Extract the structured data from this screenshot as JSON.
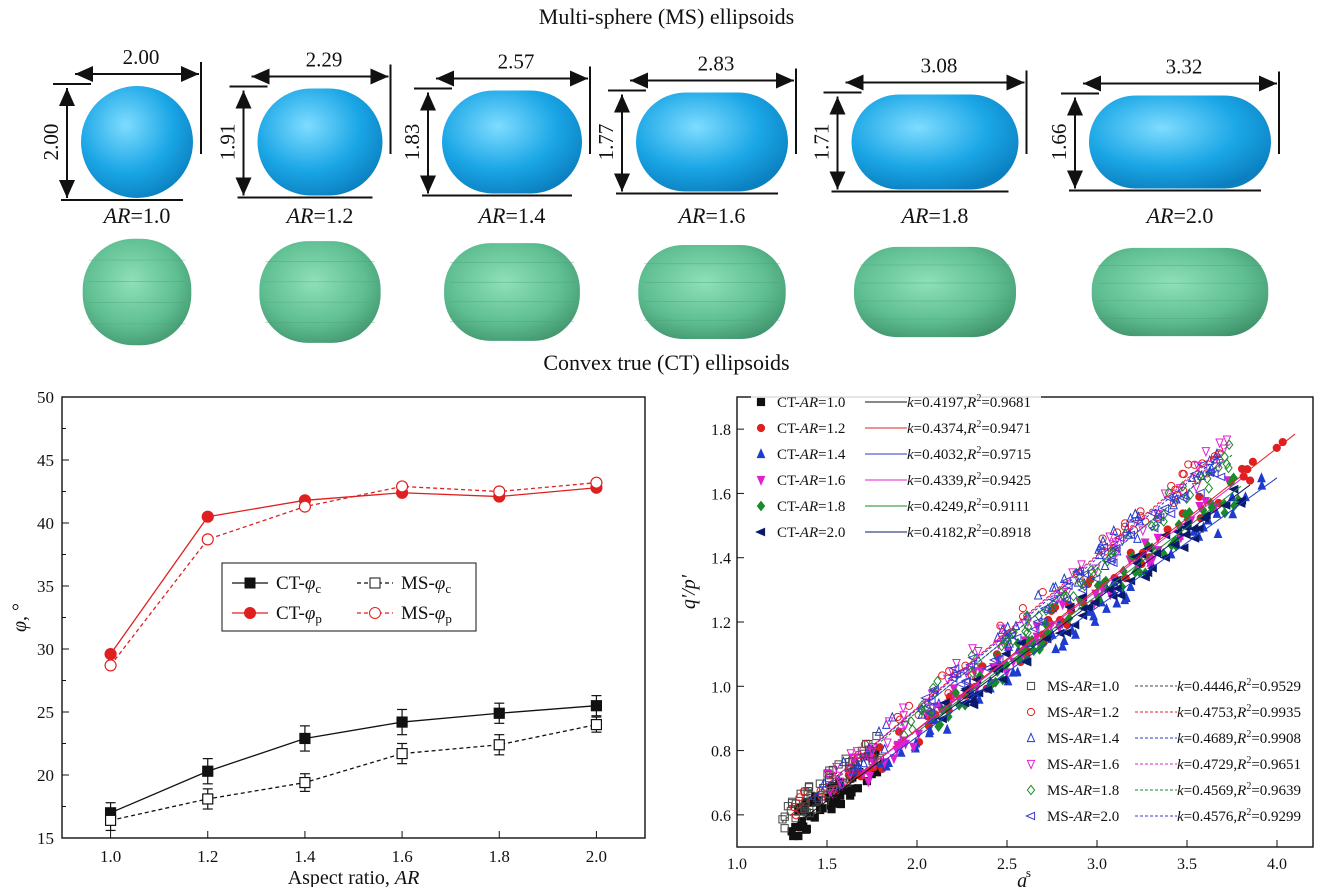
{
  "top_title": "Multi-sphere (MS) ellipsoids",
  "bottom_title": "Convex true (CT) ellipsoids",
  "colors": {
    "ms_shape": "#1aa6e6",
    "ct_shape": "#5fbf92",
    "ct_red": "#e02020",
    "black": "#111111"
  },
  "particles": [
    {
      "ar_prefix": "AR",
      "ar_value": "=1.0",
      "width_label": "2.00",
      "height_label": "2.00"
    },
    {
      "ar_prefix": "AR",
      "ar_value": "=1.2",
      "width_label": "2.29",
      "height_label": "1.91"
    },
    {
      "ar_prefix": "AR",
      "ar_value": "=1.4",
      "width_label": "2.57",
      "height_label": "1.83"
    },
    {
      "ar_prefix": "AR",
      "ar_value": "=1.6",
      "width_label": "2.83",
      "height_label": "1.77"
    },
    {
      "ar_prefix": "AR",
      "ar_value": "=1.8",
      "width_label": "3.08",
      "height_label": "1.71"
    },
    {
      "ar_prefix": "AR",
      "ar_value": "=2.0",
      "width_label": "3.32",
      "height_label": "1.66"
    }
  ],
  "chart_data": [
    {
      "type": "line",
      "xlabel": "Aspect ratio, AR",
      "ylabel": "φ, °",
      "xlim": [
        0.9,
        2.1
      ],
      "ylim": [
        15,
        50
      ],
      "xticks": [
        "1.0",
        "1.2",
        "1.4",
        "1.6",
        "1.8",
        "2.0"
      ],
      "yticks": [
        "15",
        "20",
        "25",
        "30",
        "35",
        "40",
        "45",
        "50"
      ],
      "x": [
        1.0,
        1.2,
        1.4,
        1.6,
        1.8,
        2.0
      ],
      "legend_position": "center-left",
      "series": [
        {
          "name": "CT-φc",
          "values": [
            17.0,
            20.3,
            22.9,
            24.2,
            24.9,
            25.5
          ],
          "err": [
            0.8,
            1.0,
            1.0,
            1.0,
            0.8,
            0.8
          ],
          "color": "#111111",
          "dashed": false,
          "filled": true,
          "marker": "square"
        },
        {
          "name": "MS-φc",
          "values": [
            16.4,
            18.1,
            19.4,
            21.7,
            22.4,
            24.0
          ],
          "err": [
            0.8,
            0.8,
            0.7,
            0.8,
            0.8,
            0.6
          ],
          "color": "#111111",
          "dashed": true,
          "filled": false,
          "marker": "square"
        },
        {
          "name": "CT-φp",
          "values": [
            29.6,
            40.5,
            41.8,
            42.4,
            42.1,
            42.8
          ],
          "color": "#e02020",
          "dashed": false,
          "filled": true,
          "marker": "circle"
        },
        {
          "name": "MS-φp",
          "values": [
            28.7,
            38.7,
            41.3,
            42.9,
            42.5,
            43.2
          ],
          "color": "#e02020",
          "dashed": true,
          "filled": false,
          "marker": "circle"
        }
      ]
    },
    {
      "type": "scatter",
      "xlabel": "ac s",
      "ylabel": "q'/p'",
      "xlim": [
        1.0,
        4.2
      ],
      "ylim": [
        0.5,
        1.9
      ],
      "xticks": [
        "1.0",
        "1.5",
        "2.0",
        "2.5",
        "3.0",
        "3.5",
        "4.0"
      ],
      "yticks": [
        "0.6",
        "0.8",
        "1.0",
        "1.2",
        "1.4",
        "1.6",
        "1.8"
      ],
      "series": [
        {
          "name": "CT-AR=1.0",
          "fit": "k=0.4197,R2=0.9681",
          "k": 0.4197,
          "color": "#111111",
          "marker": "square-filled",
          "xrange": [
            1.3,
            1.8
          ],
          "dashed": false
        },
        {
          "name": "CT-AR=1.2",
          "fit": "k=0.4374,R2=0.9471",
          "k": 0.4374,
          "color": "#e02020",
          "marker": "circle-filled",
          "xrange": [
            1.6,
            4.1
          ],
          "dashed": false
        },
        {
          "name": "CT-AR=1.4",
          "fit": "k=0.4032,R2=0.9715",
          "k": 0.4032,
          "color": "#1f3ccf",
          "marker": "tri-up-filled",
          "xrange": [
            1.8,
            4.0
          ],
          "dashed": false
        },
        {
          "name": "CT-AR=1.6",
          "fit": "k=0.4339,R2=0.9425",
          "k": 0.4339,
          "color": "#e020d0",
          "marker": "tri-down-filled",
          "xrange": [
            1.7,
            3.8
          ],
          "dashed": false
        },
        {
          "name": "CT-AR=1.8",
          "fit": "k=0.4249,R2=0.9111",
          "k": 0.4249,
          "color": "#1a8a2a",
          "marker": "diamond-filled",
          "xrange": [
            2.0,
            3.8
          ],
          "dashed": false
        },
        {
          "name": "CT-AR=2.0",
          "fit": "k=0.4182,R2=0.8918",
          "k": 0.4182,
          "color": "#0a1a6a",
          "marker": "tri-left-filled",
          "xrange": [
            2.1,
            3.85
          ],
          "dashed": false
        },
        {
          "name": "MS-AR=1.0",
          "fit": "k=0.4446,R2=0.9529",
          "k": 0.4446,
          "color": "#444444",
          "marker": "square-open",
          "xrange": [
            1.25,
            1.8
          ],
          "dashed": true
        },
        {
          "name": "MS-AR=1.2",
          "fit": "k=0.4753,R2=0.9935",
          "k": 0.4753,
          "color": "#e02020",
          "marker": "circle-open",
          "xrange": [
            1.3,
            3.7
          ],
          "dashed": true
        },
        {
          "name": "MS-AR=1.4",
          "fit": "k=0.4689,R2=0.9908",
          "k": 0.4689,
          "color": "#1f3ccf",
          "marker": "tri-up-open",
          "xrange": [
            1.4,
            3.7
          ],
          "dashed": true
        },
        {
          "name": "MS-AR=1.6",
          "fit": "k=0.4729,R2=0.9651",
          "k": 0.4729,
          "color": "#e020d0",
          "marker": "tri-down-open",
          "xrange": [
            1.5,
            3.75
          ],
          "dashed": true
        },
        {
          "name": "MS-AR=1.8",
          "fit": "k=0.4569,R2=0.9639",
          "k": 0.4569,
          "color": "#1a8a2a",
          "marker": "diamond-open",
          "xrange": [
            1.8,
            3.75
          ],
          "dashed": true
        },
        {
          "name": "MS-AR=2.0",
          "fit": "k=0.4576,R2=0.9299",
          "k": 0.4576,
          "color": "#3a3ad0",
          "marker": "tri-left-open",
          "xrange": [
            2.0,
            3.7
          ],
          "dashed": true
        }
      ]
    }
  ]
}
